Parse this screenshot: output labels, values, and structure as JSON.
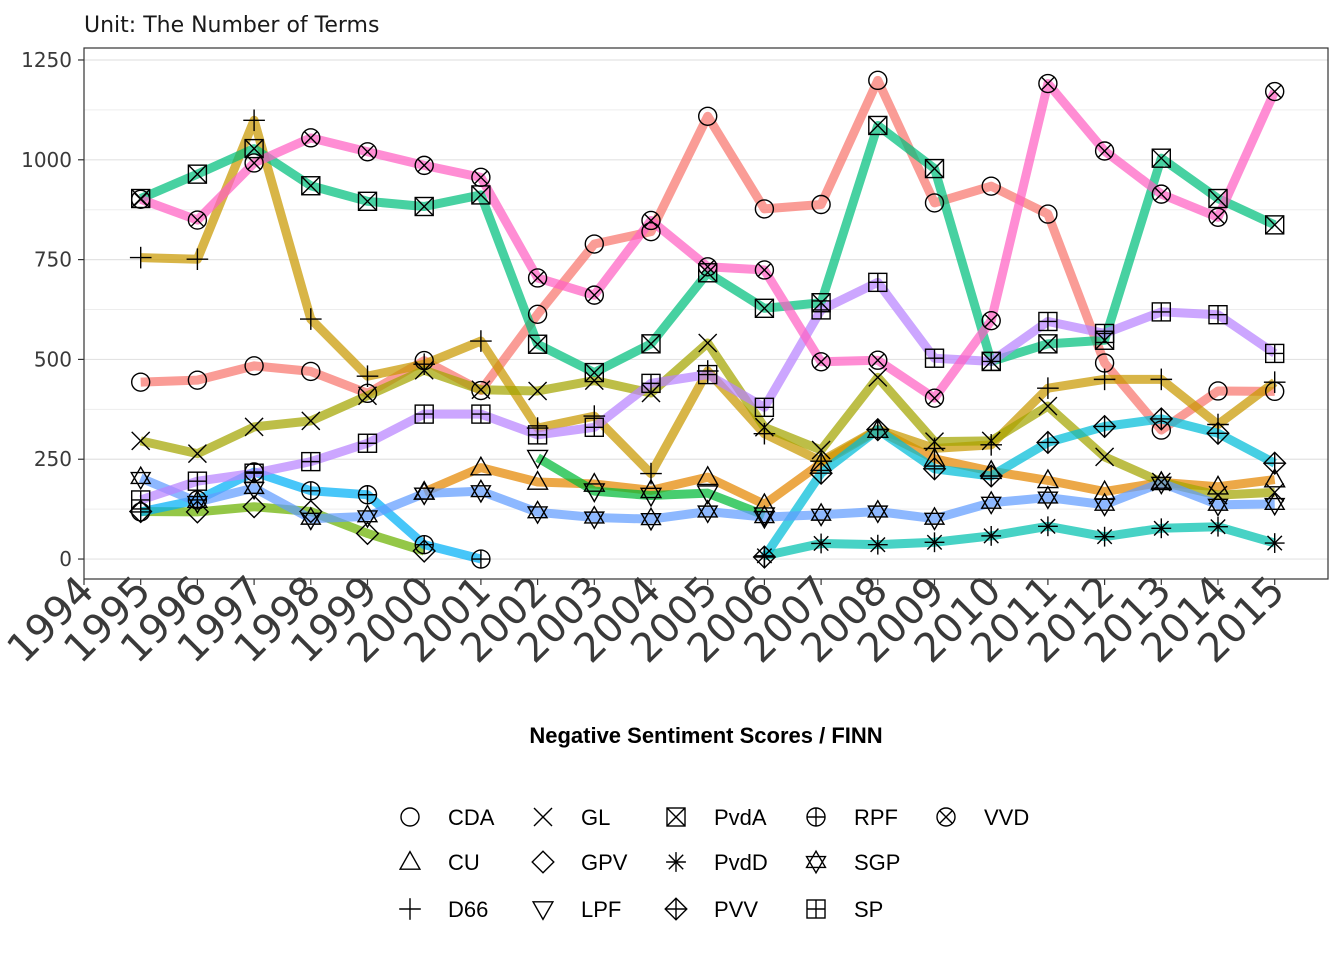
{
  "chart_data": {
    "type": "line",
    "subtitle": "Unit: The Number of Terms",
    "xlabel": "Negative Sentiment Scores / FINN",
    "ylabel": "",
    "x_ticks": [
      "1994",
      "1995",
      "1996",
      "1997",
      "1998",
      "1999",
      "2000",
      "2001",
      "2002",
      "2003",
      "2004",
      "2005",
      "2006",
      "2007",
      "2008",
      "2009",
      "2010",
      "2011",
      "2012",
      "2013",
      "2014",
      "2015"
    ],
    "y_ticks": [
      "0",
      "250",
      "500",
      "750",
      "1000",
      "1250"
    ],
    "xlim": [
      1994,
      2015
    ],
    "ylim": [
      -50,
      1280
    ],
    "grid": "horizontal",
    "legend_position": "bottom",
    "series": [
      {
        "name": "CDA",
        "color": "#F8766D",
        "shape": "circle",
        "x": [
          1995,
          1996,
          1997,
          1998,
          1999,
          2000,
          2001,
          2002,
          2003,
          2004,
          2005,
          2006,
          2007,
          2008,
          2009,
          2010,
          2011,
          2012,
          2013,
          2014,
          2015
        ],
        "values": [
          443,
          448,
          484,
          470,
          415,
          497,
          422,
          613,
          789,
          820,
          1109,
          877,
          888,
          1199,
          892,
          934,
          864,
          491,
          323,
          421,
          420
        ]
      },
      {
        "name": "CU",
        "color": "#E58700",
        "shape": "triangle",
        "x": [
          2000,
          2001,
          2002,
          2003,
          2004,
          2005,
          2006,
          2007,
          2008,
          2009,
          2010,
          2011,
          2012,
          2013,
          2014,
          2015
        ],
        "values": [
          168,
          229,
          193,
          188,
          172,
          205,
          137,
          240,
          323,
          251,
          220,
          197,
          169,
          192,
          181,
          199
        ]
      },
      {
        "name": "D66",
        "color": "#C99800",
        "shape": "plus",
        "x": [
          1995,
          1996,
          1997,
          1998,
          1999,
          2000,
          2001,
          2002,
          2003,
          2004,
          2005,
          2006,
          2007,
          2008,
          2009,
          2010,
          2011,
          2012,
          2013,
          2014,
          2015
        ],
        "values": [
          755,
          751,
          1099,
          601,
          458,
          488,
          546,
          328,
          358,
          214,
          471,
          314,
          245,
          325,
          277,
          286,
          428,
          450,
          450,
          337,
          443
        ]
      },
      {
        "name": "GL",
        "color": "#A3A500",
        "shape": "cross",
        "x": [
          1995,
          1996,
          1997,
          1998,
          1999,
          2000,
          2001,
          2002,
          2003,
          2004,
          2005,
          2006,
          2007,
          2008,
          2009,
          2010,
          2011,
          2012,
          2013,
          2014,
          2015
        ],
        "values": [
          296,
          264,
          331,
          346,
          409,
          473,
          424,
          421,
          447,
          416,
          541,
          330,
          273,
          455,
          294,
          296,
          383,
          256,
          193,
          160,
          167
        ]
      },
      {
        "name": "GPV",
        "color": "#6BB100",
        "shape": "diamond",
        "x": [
          1995,
          1996,
          1997,
          1998,
          1999,
          2000
        ],
        "values": [
          119,
          118,
          131,
          119,
          64,
          20
        ]
      },
      {
        "name": "LPF",
        "color": "#00BA38",
        "shape": "triangle-down",
        "x": [
          2002,
          2003,
          2004,
          2005,
          2006
        ],
        "values": [
          254,
          170,
          159,
          165,
          110
        ]
      },
      {
        "name": "PvdA",
        "color": "#00BF7D",
        "shape": "square-cross",
        "x": [
          1995,
          1996,
          1997,
          1998,
          1999,
          2000,
          2001,
          2002,
          2003,
          2004,
          2005,
          2006,
          2007,
          2008,
          2009,
          2010,
          2011,
          2012,
          2013,
          2014,
          2015
        ],
        "values": [
          903,
          964,
          1028,
          935,
          896,
          883,
          912,
          538,
          467,
          539,
          717,
          628,
          642,
          1086,
          978,
          495,
          539,
          548,
          1004,
          903,
          837
        ]
      },
      {
        "name": "PvdD",
        "color": "#00C0AF",
        "shape": "asterisk",
        "x": [
          2006,
          2007,
          2008,
          2009,
          2010,
          2011,
          2012,
          2013,
          2014,
          2015
        ],
        "values": [
          8,
          39,
          36,
          42,
          58,
          82,
          56,
          77,
          81,
          40
        ]
      },
      {
        "name": "PVV",
        "color": "#00BCD8",
        "shape": "diamond-plus",
        "x": [
          2006,
          2007,
          2008,
          2009,
          2010,
          2011,
          2012,
          2013,
          2014,
          2015
        ],
        "values": [
          5,
          215,
          324,
          226,
          208,
          292,
          332,
          351,
          315,
          240
        ]
      },
      {
        "name": "RPF",
        "color": "#00B0F6",
        "shape": "circle-plus",
        "x": [
          1995,
          1996,
          1997,
          1998,
          1999,
          2000,
          2001
        ],
        "values": [
          118,
          148,
          218,
          171,
          161,
          36,
          0
        ]
      },
      {
        "name": "SGP",
        "color": "#619CFF",
        "shape": "star-david",
        "x": [
          1995,
          1996,
          1997,
          1998,
          1999,
          2000,
          2001,
          2002,
          2003,
          2004,
          2005,
          2006,
          2007,
          2008,
          2009,
          2010,
          2011,
          2012,
          2013,
          2014,
          2015
        ],
        "values": [
          203,
          143,
          178,
          101,
          107,
          164,
          170,
          117,
          104,
          100,
          119,
          105,
          111,
          119,
          101,
          141,
          154,
          136,
          191,
          136,
          138
        ]
      },
      {
        "name": "SP",
        "color": "#B983FF",
        "shape": "square-plus",
        "x": [
          1995,
          1996,
          1997,
          1998,
          1999,
          2000,
          2001,
          2002,
          2003,
          2004,
          2005,
          2006,
          2007,
          2008,
          2009,
          2010,
          2011,
          2012,
          2013,
          2014,
          2015
        ],
        "values": [
          148,
          195,
          215,
          244,
          290,
          363,
          363,
          311,
          330,
          440,
          462,
          380,
          624,
          693,
          503,
          495,
          595,
          565,
          619,
          612,
          515
        ]
      },
      {
        "name": "VVD",
        "color": "#FF61C3",
        "shape": "circle-cross",
        "x": [
          1995,
          1996,
          1997,
          1998,
          1999,
          2000,
          2001,
          2002,
          2003,
          2004,
          2005,
          2006,
          2007,
          2008,
          2009,
          2010,
          2011,
          2012,
          2013,
          2014,
          2015
        ],
        "values": [
          901,
          849,
          992,
          1055,
          1020,
          986,
          956,
          704,
          661,
          848,
          732,
          724,
          494,
          498,
          403,
          597,
          1191,
          1022,
          914,
          856,
          1171
        ]
      }
    ]
  }
}
